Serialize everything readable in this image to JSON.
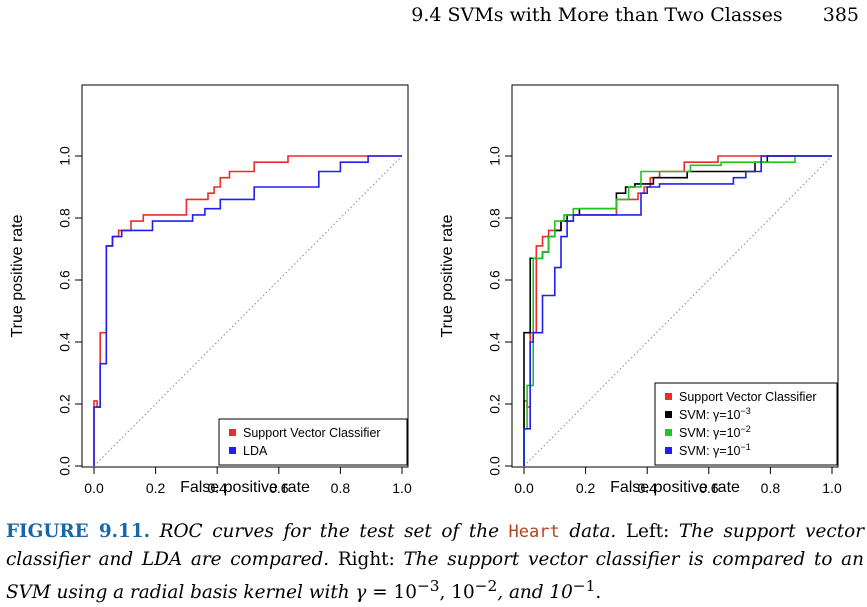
{
  "running_head": {
    "section": "9.4 SVMs with More than Two Classes",
    "page": "385"
  },
  "colors": {
    "red": "#ee2a2a",
    "blue": "#2020ee",
    "black": "#000000",
    "green": "#22c422",
    "caption_blue": "#1a66a8",
    "code_orange": "#b0451e",
    "diagonal": "#888888"
  },
  "chart_data": [
    {
      "type": "line",
      "title": "",
      "xlabel": "False positive rate",
      "ylabel": "True positive rate",
      "xlim": [
        0,
        1
      ],
      "ylim": [
        0,
        1
      ],
      "xticks": [
        "0.0",
        "0.2",
        "0.4",
        "0.6",
        "0.8",
        "1.0"
      ],
      "yticks": [
        "0.0",
        "0.2",
        "0.4",
        "0.6",
        "0.8",
        "1.0"
      ],
      "grid": false,
      "reference_line": "diagonal",
      "legend": {
        "position": "bottom-right",
        "entries": [
          {
            "label": "Support Vector Classifier",
            "color": "#ee2a2a"
          },
          {
            "label": "LDA",
            "color": "#2020ee"
          }
        ]
      },
      "series": [
        {
          "color": "#ee2a2a",
          "x": [
            0,
            0,
            0.01,
            0.01,
            0.02,
            0.02,
            0.04,
            0.04,
            0.06,
            0.06,
            0.08,
            0.08,
            0.12,
            0.12,
            0.16,
            0.16,
            0.3,
            0.3,
            0.37,
            0.37,
            0.39,
            0.39,
            0.41,
            0.41,
            0.44,
            0.44,
            0.52,
            0.52,
            0.63,
            0.63,
            0.88,
            0.88,
            1.0
          ],
          "y": [
            0,
            0.21,
            0.21,
            0.19,
            0.19,
            0.43,
            0.43,
            0.71,
            0.71,
            0.74,
            0.74,
            0.76,
            0.76,
            0.79,
            0.79,
            0.81,
            0.81,
            0.86,
            0.86,
            0.88,
            0.88,
            0.9,
            0.9,
            0.93,
            0.93,
            0.95,
            0.95,
            0.98,
            0.98,
            1.0,
            1.0,
            1.0,
            1.0
          ]
        },
        {
          "color": "#2020ee",
          "x": [
            0,
            0,
            0.02,
            0.02,
            0.04,
            0.04,
            0.06,
            0.06,
            0.09,
            0.09,
            0.19,
            0.19,
            0.32,
            0.32,
            0.36,
            0.36,
            0.41,
            0.41,
            0.52,
            0.52,
            0.73,
            0.73,
            0.8,
            0.8,
            0.89,
            0.89,
            1.0
          ],
          "y": [
            0,
            0.19,
            0.19,
            0.33,
            0.33,
            0.71,
            0.71,
            0.74,
            0.74,
            0.76,
            0.76,
            0.79,
            0.79,
            0.81,
            0.81,
            0.83,
            0.83,
            0.86,
            0.86,
            0.9,
            0.9,
            0.95,
            0.95,
            0.98,
            0.98,
            1.0,
            1.0
          ]
        }
      ]
    },
    {
      "type": "line",
      "title": "",
      "xlabel": "False positive rate",
      "ylabel": "True positive rate",
      "xlim": [
        0,
        1
      ],
      "ylim": [
        0,
        1
      ],
      "xticks": [
        "0.0",
        "0.2",
        "0.4",
        "0.6",
        "0.8",
        "1.0"
      ],
      "yticks": [
        "0.0",
        "0.2",
        "0.4",
        "0.6",
        "0.8",
        "1.0"
      ],
      "grid": false,
      "reference_line": "diagonal",
      "legend": {
        "position": "bottom-right",
        "entries": [
          {
            "label": "Support Vector Classifier",
            "color": "#ee2a2a"
          },
          {
            "label": "SVM: γ=10",
            "sup": "−3",
            "color": "#000000"
          },
          {
            "label": "SVM: γ=10",
            "sup": "−2",
            "color": "#22c422"
          },
          {
            "label": "SVM: γ=10",
            "sup": "−1",
            "color": "#2020ee"
          }
        ]
      },
      "series": [
        {
          "color": "#ee2a2a",
          "x": [
            0,
            0,
            0.01,
            0.01,
            0.02,
            0.02,
            0.04,
            0.04,
            0.06,
            0.06,
            0.08,
            0.08,
            0.12,
            0.12,
            0.16,
            0.16,
            0.3,
            0.3,
            0.37,
            0.37,
            0.39,
            0.39,
            0.41,
            0.41,
            0.44,
            0.44,
            0.52,
            0.52,
            0.63,
            0.63,
            0.88,
            0.88,
            1.0
          ],
          "y": [
            0,
            0.21,
            0.21,
            0.19,
            0.19,
            0.43,
            0.43,
            0.71,
            0.71,
            0.74,
            0.74,
            0.76,
            0.76,
            0.79,
            0.79,
            0.81,
            0.81,
            0.86,
            0.86,
            0.88,
            0.88,
            0.9,
            0.9,
            0.93,
            0.93,
            0.95,
            0.95,
            0.98,
            0.98,
            1.0,
            1.0,
            1.0,
            1.0
          ]
        },
        {
          "color": "#000000",
          "x": [
            0,
            0,
            0.02,
            0.02,
            0.06,
            0.06,
            0.08,
            0.08,
            0.1,
            0.1,
            0.12,
            0.12,
            0.14,
            0.14,
            0.18,
            0.18,
            0.3,
            0.3,
            0.33,
            0.33,
            0.36,
            0.36,
            0.42,
            0.42,
            0.53,
            0.53,
            0.75,
            0.75,
            0.79,
            0.79,
            1.0
          ],
          "y": [
            0,
            0.43,
            0.43,
            0.67,
            0.67,
            0.69,
            0.69,
            0.74,
            0.74,
            0.76,
            0.76,
            0.79,
            0.79,
            0.81,
            0.81,
            0.83,
            0.83,
            0.88,
            0.88,
            0.9,
            0.9,
            0.91,
            0.91,
            0.93,
            0.93,
            0.95,
            0.95,
            0.98,
            0.98,
            1.0,
            1.0
          ]
        },
        {
          "color": "#22c422",
          "x": [
            0,
            0,
            0.01,
            0.01,
            0.03,
            0.03,
            0.06,
            0.06,
            0.08,
            0.08,
            0.1,
            0.1,
            0.13,
            0.13,
            0.16,
            0.16,
            0.3,
            0.3,
            0.34,
            0.34,
            0.38,
            0.38,
            0.54,
            0.54,
            0.64,
            0.64,
            0.88,
            0.88,
            1.0
          ],
          "y": [
            0,
            0.12,
            0.12,
            0.26,
            0.26,
            0.67,
            0.67,
            0.69,
            0.69,
            0.74,
            0.74,
            0.79,
            0.79,
            0.81,
            0.81,
            0.83,
            0.83,
            0.86,
            0.86,
            0.9,
            0.9,
            0.95,
            0.95,
            0.97,
            0.97,
            0.98,
            0.98,
            1.0,
            1.0
          ]
        },
        {
          "color": "#2020ee",
          "x": [
            0,
            0,
            0.02,
            0.02,
            0.03,
            0.03,
            0.04,
            0.04,
            0.06,
            0.06,
            0.1,
            0.1,
            0.12,
            0.12,
            0.14,
            0.14,
            0.16,
            0.16,
            0.38,
            0.38,
            0.4,
            0.4,
            0.44,
            0.44,
            0.68,
            0.68,
            0.72,
            0.72,
            0.77,
            0.77,
            1.0
          ],
          "y": [
            0,
            0.12,
            0.12,
            0.4,
            0.4,
            0.43,
            0.43,
            0.43,
            0.43,
            0.55,
            0.55,
            0.64,
            0.64,
            0.74,
            0.74,
            0.79,
            0.79,
            0.81,
            0.81,
            0.88,
            0.88,
            0.9,
            0.9,
            0.91,
            0.91,
            0.93,
            0.93,
            0.95,
            0.95,
            1.0,
            1.0
          ]
        }
      ]
    }
  ],
  "caption": {
    "label": "FIGURE 9.11.",
    "p1": " ROC curves for the test set of the ",
    "code": "Heart",
    "p2": " data.",
    "p3": " Left: ",
    "p4": "The support vector classifier and LDA are compared.",
    "p5": " Right: ",
    "p6": "The support vector classifier is compared to an SVM using a radial basis kernel with ",
    "gamma": "γ",
    "p7": " = 10",
    "e1": "−3",
    "p8": ", 10",
    "e2": "−2",
    "p9": ", and 10",
    "e3": "−1",
    "p10": "."
  }
}
